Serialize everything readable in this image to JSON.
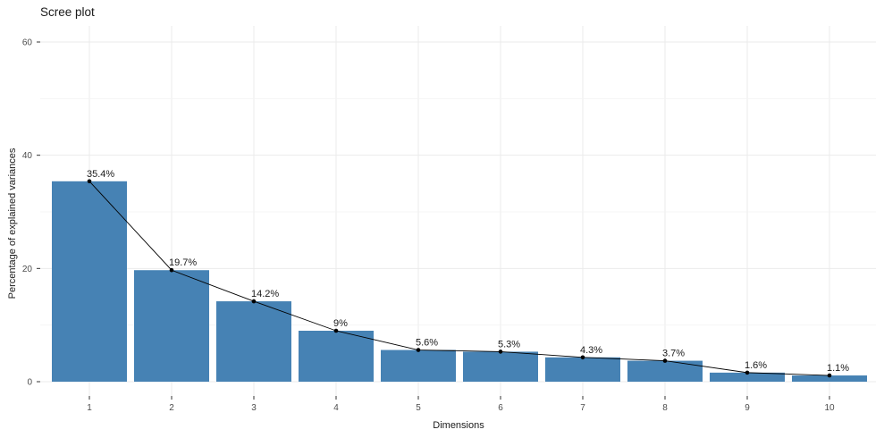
{
  "chart_data": {
    "type": "bar",
    "title": "Scree plot",
    "xlabel": "Dimensions",
    "ylabel": "Percentage of explained variances",
    "categories": [
      "1",
      "2",
      "3",
      "4",
      "5",
      "6",
      "7",
      "8",
      "9",
      "10"
    ],
    "values": [
      35.4,
      19.7,
      14.2,
      9,
      5.6,
      5.3,
      4.3,
      3.7,
      1.6,
      1.1
    ],
    "point_labels": [
      "35.4%",
      "19.7%",
      "14.2%",
      "9%",
      "5.6%",
      "5.3%",
      "4.3%",
      "3.7%",
      "1.6%",
      "1.1%"
    ],
    "ylim": [
      0,
      60
    ],
    "y_ticks": [
      0,
      20,
      40,
      60
    ],
    "y_minor_ticks": [
      10,
      30,
      50
    ],
    "grid": "on",
    "legend": "none",
    "overlay": "line-with-points",
    "colors": {
      "bar": "#4682B4",
      "line": "#000000",
      "point": "#000000",
      "grid_major": "#EBEBEB",
      "grid_minor": "#F4F4F4",
      "axis_tick": "#333333",
      "tick_label": "#4D4D4D",
      "text": "#1A1A1A",
      "background": "#FFFFFF"
    }
  }
}
